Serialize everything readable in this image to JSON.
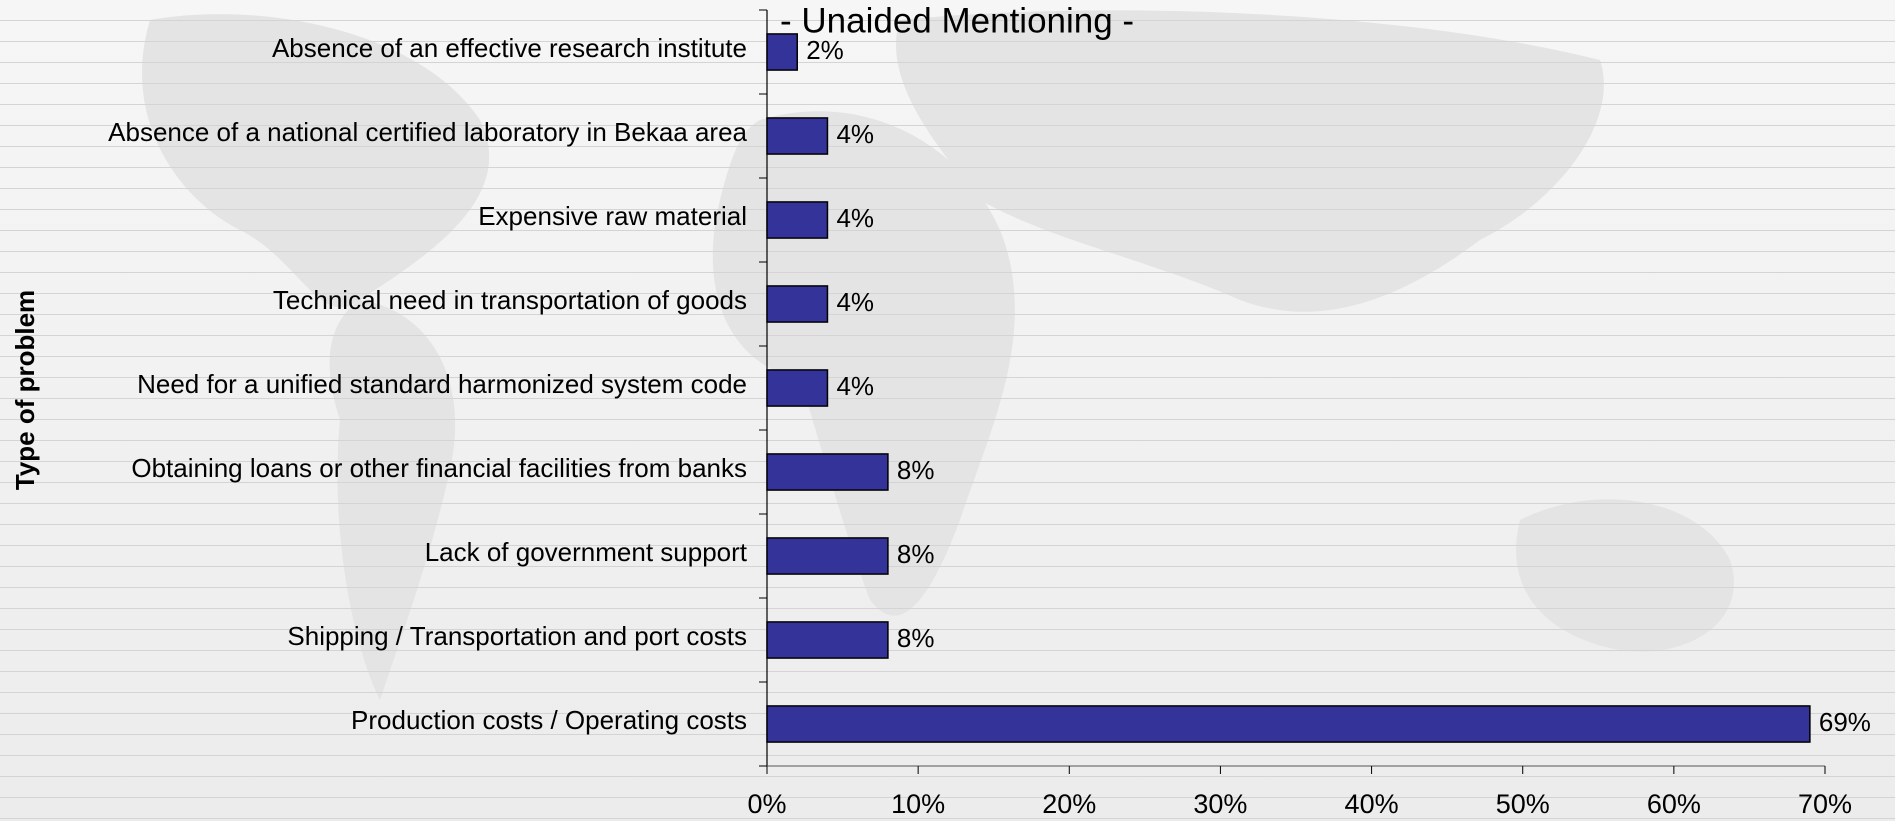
{
  "chart_data": {
    "type": "bar",
    "orientation": "horizontal",
    "title": "- Unaided Mentioning -",
    "y_label": "Type of problem",
    "categories": [
      "Absence of an effective research institute",
      "Absence of a national certified laboratory in Bekaa area",
      "Expensive raw  material",
      "Technical need in transportation of goods",
      "Need for a unified standard harmonized system code",
      "Obtaining loans or other financial facilities from banks",
      "Lack of government support",
      "Shipping / Transportation and port costs",
      "Production costs / Operating costs"
    ],
    "values": [
      2,
      4,
      4,
      4,
      4,
      8,
      8,
      8,
      69
    ],
    "value_labels": [
      "2%",
      "4%",
      "4%",
      "4%",
      "4%",
      "8%",
      "8%",
      "8%",
      "69%"
    ],
    "color": "#333399",
    "xlim": [
      0,
      70
    ],
    "xticks": [
      {
        "value": 0,
        "label": "0%"
      },
      {
        "value": 10,
        "label": "10%"
      },
      {
        "value": 20,
        "label": "20%"
      },
      {
        "value": 30,
        "label": "30%"
      },
      {
        "value": 40,
        "label": "40%"
      },
      {
        "value": 50,
        "label": "50%"
      },
      {
        "value": 60,
        "label": "60%"
      },
      {
        "value": 70,
        "label": "70%"
      }
    ],
    "grid": false
  }
}
